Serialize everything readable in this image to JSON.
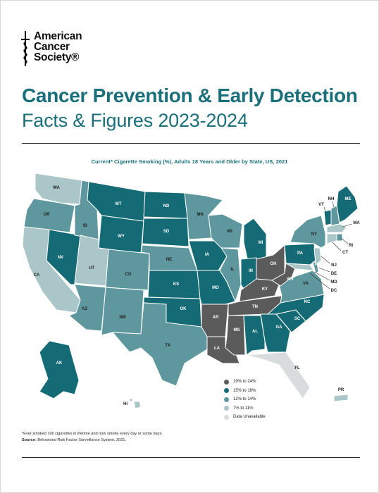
{
  "org": {
    "name_lines": [
      "American",
      "Cancer",
      "Society®"
    ]
  },
  "report": {
    "title": "Cancer Prevention & Early Detection",
    "subtitle": "Facts & Figures 2023-2024"
  },
  "map": {
    "title": "Current* Cigarette Smoking (%), Adults 18 Years and Older by State, US, 2021",
    "legend": [
      {
        "label": "19% to 24%",
        "color": "#5b5b5b"
      },
      {
        "label": "15% to 18%",
        "color": "#156b75"
      },
      {
        "label": "12% to 14%",
        "color": "#5e979d"
      },
      {
        "label": "7% to 11%",
        "color": "#aac6c9"
      },
      {
        "label": "Data Unavailable",
        "color": "#d8dcdd"
      }
    ],
    "states": {
      "WA": {
        "label": "WA",
        "category": 3
      },
      "OR": {
        "label": "OR",
        "category": 2
      },
      "CA": {
        "label": "CA",
        "category": 3
      },
      "NV": {
        "label": "NV",
        "category": 1
      },
      "ID": {
        "label": "ID",
        "category": 2
      },
      "MT": {
        "label": "MT",
        "category": 1
      },
      "WY": {
        "label": "WY",
        "category": 1
      },
      "UT": {
        "label": "UT",
        "category": 3
      },
      "AZ": {
        "label": "AZ",
        "category": 2
      },
      "CO": {
        "label": "CO",
        "category": 2
      },
      "NM": {
        "label": "NM",
        "category": 2
      },
      "ND": {
        "label": "ND",
        "category": 1
      },
      "SD": {
        "label": "SD",
        "category": 1
      },
      "NE": {
        "label": "NE",
        "category": 2
      },
      "KS": {
        "label": "KS",
        "category": 1
      },
      "OK": {
        "label": "OK",
        "category": 1
      },
      "TX": {
        "label": "TX",
        "category": 2
      },
      "MN": {
        "label": "MN",
        "category": 2
      },
      "IA": {
        "label": "IA",
        "category": 1
      },
      "MO": {
        "label": "MO",
        "category": 1
      },
      "AR": {
        "label": "AR",
        "category": 0
      },
      "LA": {
        "label": "LA",
        "category": 0
      },
      "WI": {
        "label": "WI",
        "category": 2
      },
      "IL": {
        "label": "IL",
        "category": 2
      },
      "MI": {
        "label": "MI",
        "category": 1
      },
      "IN": {
        "label": "IN",
        "category": 1
      },
      "OH": {
        "label": "OH",
        "category": 0
      },
      "KY": {
        "label": "KY",
        "category": 0
      },
      "TN": {
        "label": "TN",
        "category": 0
      },
      "MS": {
        "label": "MS",
        "category": 0
      },
      "AL": {
        "label": "AL",
        "category": 1
      },
      "GA": {
        "label": "GA",
        "category": 1
      },
      "FL": {
        "label": "FL",
        "category": 4
      },
      "SC": {
        "label": "SC",
        "category": 1
      },
      "NC": {
        "label": "NC",
        "category": 1
      },
      "VA": {
        "label": "VA",
        "category": 2
      },
      "WV": {
        "label": "WV",
        "category": 0
      },
      "PA": {
        "label": "PA",
        "category": 1
      },
      "NY": {
        "label": "NY",
        "category": 2
      },
      "VT": {
        "label": "VT",
        "category": 1
      },
      "NH": {
        "label": "NH",
        "category": 2
      },
      "ME": {
        "label": "ME",
        "category": 1
      },
      "MA": {
        "label": "MA",
        "category": 3
      },
      "RI": {
        "label": "RI",
        "category": 2
      },
      "CT": {
        "label": "CT",
        "category": 3
      },
      "NJ": {
        "label": "NJ",
        "category": 3
      },
      "DE": {
        "label": "DE",
        "category": 2
      },
      "MD": {
        "label": "MD",
        "category": 3
      },
      "DC": {
        "label": "DC",
        "category": 3
      },
      "AK": {
        "label": "AK",
        "category": 1
      },
      "HI": {
        "label": "HI",
        "category": 3
      },
      "PR": {
        "label": "PR",
        "category": 3
      }
    }
  },
  "footnote": {
    "note": "*Ever smoked 100 cigarettes in lifetime and now smoke every day or some days.",
    "source_label": "Source:",
    "source_text": " Behavioral Risk Factor Surveillance System, 2021."
  }
}
